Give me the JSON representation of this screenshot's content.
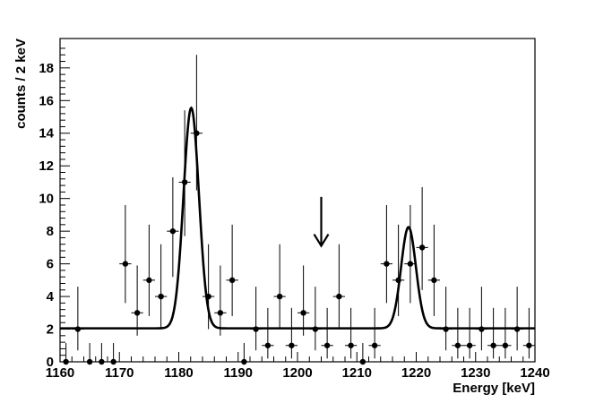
{
  "chart_data": {
    "type": "scatter",
    "xlabel": "Energy [keV]",
    "ylabel": "counts / 2 keV",
    "xlim": [
      1160,
      1240
    ],
    "ylim": [
      0,
      19.8
    ],
    "x_ticks": [
      1160,
      1170,
      1180,
      1190,
      1200,
      1210,
      1220,
      1230,
      1240
    ],
    "y_ticks": [
      0,
      2,
      4,
      6,
      8,
      10,
      12,
      14,
      16,
      18
    ],
    "bin_half_width": 1,
    "points": [
      {
        "x": 1161,
        "y": 0,
        "lo": 0,
        "hi": 1.15
      },
      {
        "x": 1163,
        "y": 2,
        "lo": 0.7,
        "hi": 4.6
      },
      {
        "x": 1165,
        "y": 0,
        "lo": 0,
        "hi": 1.15
      },
      {
        "x": 1167,
        "y": 0,
        "lo": 0,
        "hi": 1.15
      },
      {
        "x": 1169,
        "y": 0,
        "lo": 0,
        "hi": 1.15
      },
      {
        "x": 1171,
        "y": 6,
        "lo": 3.6,
        "hi": 9.6
      },
      {
        "x": 1173,
        "y": 3,
        "lo": 1.6,
        "hi": 5.9
      },
      {
        "x": 1175,
        "y": 5,
        "lo": 2.8,
        "hi": 8.4
      },
      {
        "x": 1177,
        "y": 4,
        "lo": 2.0,
        "hi": 7.2
      },
      {
        "x": 1179,
        "y": 8,
        "lo": 5.2,
        "hi": 11.3
      },
      {
        "x": 1181,
        "y": 11,
        "lo": 7.7,
        "hi": 15.4
      },
      {
        "x": 1183,
        "y": 14,
        "lo": 10.5,
        "hi": 18.8
      },
      {
        "x": 1185,
        "y": 4,
        "lo": 2.0,
        "hi": 7.2
      },
      {
        "x": 1187,
        "y": 3,
        "lo": 1.6,
        "hi": 5.9
      },
      {
        "x": 1189,
        "y": 5,
        "lo": 2.8,
        "hi": 8.4
      },
      {
        "x": 1191,
        "y": 0,
        "lo": 0,
        "hi": 1.15
      },
      {
        "x": 1193,
        "y": 2,
        "lo": 0.7,
        "hi": 4.6
      },
      {
        "x": 1195,
        "y": 1,
        "lo": 0.2,
        "hi": 3.3
      },
      {
        "x": 1197,
        "y": 4,
        "lo": 2.0,
        "hi": 7.2
      },
      {
        "x": 1199,
        "y": 1,
        "lo": 0.2,
        "hi": 3.3
      },
      {
        "x": 1201,
        "y": 3,
        "lo": 1.6,
        "hi": 5.9
      },
      {
        "x": 1203,
        "y": 2,
        "lo": 0.7,
        "hi": 4.6
      },
      {
        "x": 1205,
        "y": 1,
        "lo": 0.2,
        "hi": 3.3
      },
      {
        "x": 1207,
        "y": 4,
        "lo": 2.0,
        "hi": 7.2
      },
      {
        "x": 1209,
        "y": 1,
        "lo": 0.2,
        "hi": 3.3
      },
      {
        "x": 1211,
        "y": 0,
        "lo": 0,
        "hi": 1.15
      },
      {
        "x": 1213,
        "y": 1,
        "lo": 0.2,
        "hi": 3.3
      },
      {
        "x": 1215,
        "y": 6,
        "lo": 3.6,
        "hi": 9.6
      },
      {
        "x": 1217,
        "y": 5,
        "lo": 2.8,
        "hi": 8.4
      },
      {
        "x": 1219,
        "y": 6,
        "lo": 3.6,
        "hi": 9.6
      },
      {
        "x": 1221,
        "y": 7,
        "lo": 4.4,
        "hi": 10.7
      },
      {
        "x": 1223,
        "y": 5,
        "lo": 2.8,
        "hi": 8.4
      },
      {
        "x": 1225,
        "y": 2,
        "lo": 0.7,
        "hi": 4.6
      },
      {
        "x": 1227,
        "y": 1,
        "lo": 0.2,
        "hi": 3.3
      },
      {
        "x": 1229,
        "y": 1,
        "lo": 0.2,
        "hi": 3.3
      },
      {
        "x": 1231,
        "y": 2,
        "lo": 0.7,
        "hi": 4.6
      },
      {
        "x": 1233,
        "y": 1,
        "lo": 0.2,
        "hi": 3.3
      },
      {
        "x": 1235,
        "y": 1,
        "lo": 0.2,
        "hi": 3.3
      },
      {
        "x": 1237,
        "y": 2,
        "lo": 0.7,
        "hi": 4.6
      },
      {
        "x": 1239,
        "y": 1,
        "lo": 0.2,
        "hi": 3.3
      }
    ],
    "fit": {
      "baseline": 2.05,
      "peaks": [
        {
          "mean": 1182.1,
          "sigma": 1.3,
          "amplitude": 13.5
        },
        {
          "mean": 1218.7,
          "sigma": 1.25,
          "amplitude": 6.2
        }
      ]
    },
    "arrow": {
      "x": 1204,
      "y_top": 10.1,
      "y_tip": 7.1
    }
  }
}
